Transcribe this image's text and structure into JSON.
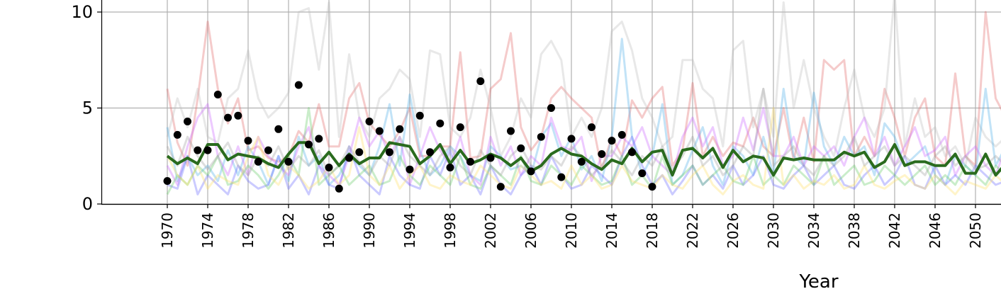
{
  "chart_data": {
    "type": "line",
    "title": "",
    "xlabel": "Year",
    "ylabel": "",
    "xlim": [
      1963.5,
      2053
    ],
    "ylim": [
      0,
      10.5
    ],
    "grid": true,
    "x_ticks": [
      1970,
      1974,
      1978,
      1982,
      1986,
      1990,
      1994,
      1998,
      2002,
      2006,
      2010,
      2014,
      2018,
      2022,
      2026,
      2030,
      2034,
      2038,
      2042,
      2046,
      2050
    ],
    "x_tick_labels": [
      "1970",
      "1974",
      "1978",
      "1982",
      "1986",
      "1990",
      "1994",
      "1998",
      "2002",
      "2006",
      "2010",
      "2014",
      "2018",
      "2022",
      "2026",
      "2030",
      "2034",
      "2038",
      "2042",
      "2046",
      "2050"
    ],
    "y_ticks": [
      0,
      5,
      10
    ],
    "y_tick_labels": [
      "0",
      "5",
      "10"
    ],
    "colors": {
      "mean_line": "#2a6b1e",
      "observed_points": "#000000",
      "ensemble": [
        "#e36a6a",
        "#bdbdbd",
        "#4fb0e8",
        "#cc66ff",
        "#6b6bff",
        "#66cc66",
        "#ffe066",
        "#a0a0a0"
      ]
    },
    "series": [
      {
        "kind": "mean",
        "x": [
          1970,
          1971,
          1972,
          1973,
          1974,
          1975,
          1976,
          1977,
          1978,
          1979,
          1980,
          1981,
          1982,
          1983,
          1984,
          1985,
          1986,
          1987,
          1988,
          1989,
          1990,
          1991,
          1992,
          1993,
          1994,
          1995,
          1996,
          1997,
          1998,
          1999,
          2000,
          2001,
          2002,
          2003,
          2004,
          2005,
          2006,
          2007,
          2008,
          2009,
          2010,
          2011,
          2012,
          2013,
          2014,
          2015,
          2016,
          2017,
          2018,
          2019,
          2020,
          2021,
          2022,
          2023,
          2024,
          2025,
          2026,
          2027,
          2028,
          2029,
          2030,
          2031,
          2032,
          2033,
          2034,
          2035,
          2036,
          2037,
          2038,
          2039,
          2040,
          2041,
          2042,
          2043,
          2044,
          2045,
          2046,
          2047,
          2048,
          2049,
          2050,
          2051,
          2052,
          2053
        ],
        "values": [
          2.5,
          2.1,
          2.4,
          2.1,
          3.1,
          3.1,
          2.3,
          2.6,
          2.5,
          2.4,
          2.1,
          1.9,
          2.6,
          3.2,
          3.2,
          2.1,
          2.7,
          2.0,
          2.6,
          2.1,
          2.4,
          2.4,
          3.2,
          3.1,
          3.0,
          2.1,
          2.5,
          3.1,
          2.1,
          2.8,
          2.1,
          2.3,
          2.6,
          2.4,
          2.0,
          2.4,
          1.7,
          2.0,
          2.6,
          2.9,
          2.6,
          2.5,
          2.1,
          1.8,
          2.3,
          2.1,
          2.9,
          2.2,
          2.7,
          2.8,
          1.5,
          2.8,
          2.9,
          2.4,
          2.9,
          1.9,
          2.8,
          2.2,
          2.5,
          2.4,
          1.5,
          2.4,
          2.3,
          2.4,
          2.3,
          2.3,
          2.3,
          2.7,
          2.5,
          2.7,
          1.9,
          2.2,
          3.1,
          2.0,
          2.2,
          2.2,
          2.0,
          2.0,
          2.6,
          1.6,
          1.6,
          2.6,
          1.5,
          2.1
        ]
      },
      {
        "kind": "observed",
        "x": [
          1970,
          1971,
          1972,
          1973,
          1974,
          1975,
          1976,
          1977,
          1978,
          1979,
          1980,
          1981,
          1982,
          1983,
          1984,
          1985,
          1986,
          1987,
          1988,
          1989,
          1990,
          1991,
          1992,
          1993,
          1994,
          1995,
          1996,
          1997,
          1998,
          1999,
          2000,
          2001,
          2002,
          2003,
          2004,
          2005,
          2006,
          2007,
          2008,
          2009,
          2010,
          2011,
          2012,
          2013,
          2014,
          2015,
          2016,
          2017,
          2018
        ],
        "values": [
          1.2,
          3.6,
          4.3,
          2.8,
          2.8,
          5.7,
          4.5,
          4.6,
          3.3,
          2.2,
          2.8,
          3.9,
          2.2,
          6.2,
          3.1,
          3.4,
          1.9,
          0.8,
          2.4,
          2.7,
          4.3,
          3.8,
          2.7,
          3.9,
          1.8,
          4.6,
          2.7,
          4.2,
          1.9,
          4.0,
          2.2,
          6.4,
          2.4,
          0.9,
          3.8,
          2.9,
          1.7,
          3.5,
          5.0,
          1.4,
          3.4,
          2.2,
          4.0,
          2.6,
          3.3,
          3.6,
          2.7,
          1.6,
          0.9
        ]
      },
      {
        "kind": "ensemble",
        "x_start": 1970,
        "values": [
          6.0,
          3.2,
          2.0,
          5.5,
          9.5,
          6.0,
          4.2,
          5.5,
          2.8,
          3.0,
          2.4,
          2.2,
          2.5,
          3.8,
          3.2,
          5.2,
          3.0,
          3.0,
          5.5,
          6.3,
          4.2,
          3.6,
          3.0,
          3.8,
          5.0,
          2.5,
          2.5,
          3.0,
          3.0,
          7.9,
          2.4,
          2.5,
          6.0,
          6.5,
          8.9,
          4.0,
          2.8,
          3.5,
          5.5,
          6.1,
          5.5,
          5.0,
          4.5,
          1.8,
          3.5,
          2.5,
          5.4,
          4.5,
          5.5,
          6.1,
          2.0,
          2.8,
          6.3,
          2.5,
          3.5,
          2.5,
          3.2,
          3.0,
          4.5,
          3.0,
          2.5,
          5.0,
          2.3,
          4.5,
          2.2,
          7.5,
          7.0,
          7.5,
          2.5,
          3.5,
          2.5,
          6.0,
          4.5,
          2.5,
          4.5,
          5.5,
          2.5,
          2.0,
          6.8,
          2.5,
          2.0,
          10.0,
          5.5,
          4.5
        ]
      },
      {
        "kind": "ensemble",
        "x_start": 1970,
        "values": [
          3.5,
          5.5,
          4.0,
          6.0,
          3.5,
          3.2,
          5.5,
          6.0,
          8.0,
          5.5,
          4.5,
          5.0,
          5.8,
          10.0,
          10.2,
          7.0,
          10.5,
          3.5,
          7.8,
          4.5,
          3.5,
          5.5,
          6.0,
          7.0,
          6.5,
          3.5,
          8.0,
          7.8,
          4.0,
          3.5,
          4.5,
          7.0,
          5.0,
          2.5,
          3.5,
          5.5,
          4.5,
          7.8,
          8.5,
          7.5,
          3.5,
          4.5,
          3.5,
          5.0,
          9.0,
          9.5,
          8.0,
          5.5,
          4.5,
          3.0,
          3.5,
          7.5,
          7.5,
          6.0,
          5.5,
          3.0,
          8.0,
          8.5,
          4.0,
          6.0,
          3.5,
          10.5,
          5.0,
          7.5,
          5.0,
          3.5,
          2.5,
          5.0,
          7.0,
          4.5,
          3.5,
          5.0,
          11.0,
          3.0,
          5.5,
          3.5,
          4.0,
          2.5,
          3.0,
          2.0,
          4.5,
          3.5,
          3.0,
          3.5
        ]
      },
      {
        "kind": "ensemble",
        "x_start": 1970,
        "values": [
          4.0,
          1.2,
          2.5,
          1.5,
          2.0,
          1.2,
          2.8,
          1.5,
          3.0,
          2.2,
          1.0,
          2.5,
          1.2,
          3.5,
          2.0,
          2.5,
          1.0,
          1.5,
          2.5,
          2.0,
          1.5,
          3.0,
          5.2,
          2.0,
          5.7,
          2.8,
          1.5,
          2.0,
          3.0,
          2.5,
          1.5,
          1.2,
          3.0,
          2.5,
          1.8,
          2.0,
          1.5,
          3.5,
          4.2,
          2.5,
          3.5,
          1.8,
          2.5,
          1.2,
          3.5,
          8.6,
          3.5,
          1.5,
          2.5,
          5.2,
          1.0,
          1.5,
          2.8,
          4.0,
          2.0,
          1.0,
          3.0,
          2.5,
          1.5,
          3.5,
          1.5,
          6.0,
          2.5,
          2.0,
          5.8,
          3.0,
          2.0,
          3.5,
          2.5,
          3.0,
          1.5,
          4.2,
          3.5,
          2.0,
          2.5,
          3.0,
          1.5,
          1.0,
          2.5,
          2.0,
          1.5,
          6.0,
          2.0,
          3.0
        ]
      },
      {
        "kind": "ensemble",
        "x_start": 1970,
        "values": [
          2.0,
          1.0,
          3.0,
          4.5,
          5.2,
          2.5,
          1.5,
          3.0,
          1.5,
          3.5,
          2.5,
          2.0,
          1.5,
          3.0,
          4.0,
          2.0,
          1.5,
          1.0,
          2.5,
          4.5,
          3.0,
          3.8,
          2.5,
          3.5,
          1.0,
          2.5,
          4.0,
          2.8,
          2.0,
          3.5,
          1.5,
          1.0,
          3.5,
          2.0,
          3.0,
          1.5,
          2.5,
          2.0,
          4.5,
          3.0,
          2.8,
          3.5,
          1.2,
          2.5,
          2.5,
          3.5,
          3.0,
          4.0,
          2.5,
          2.0,
          1.5,
          3.5,
          4.5,
          3.0,
          4.0,
          2.0,
          2.5,
          4.5,
          2.8,
          5.0,
          2.5,
          2.5,
          3.5,
          2.0,
          3.0,
          2.5,
          3.0,
          2.0,
          3.5,
          4.5,
          2.5,
          3.5,
          2.0,
          3.0,
          4.0,
          2.5,
          2.8,
          3.5,
          1.5,
          2.5,
          3.0,
          2.0,
          1.5,
          3.0
        ]
      },
      {
        "kind": "ensemble",
        "x_start": 1970,
        "values": [
          1.0,
          0.8,
          2.5,
          0.5,
          1.5,
          1.0,
          0.5,
          2.0,
          1.2,
          0.8,
          1.0,
          2.5,
          0.8,
          1.5,
          0.5,
          2.0,
          1.0,
          0.8,
          3.0,
          1.5,
          1.0,
          0.5,
          2.5,
          1.5,
          1.0,
          0.8,
          2.5,
          1.5,
          2.8,
          1.0,
          1.5,
          0.5,
          2.0,
          1.0,
          0.5,
          1.5,
          2.0,
          1.0,
          2.5,
          1.5,
          0.8,
          1.0,
          2.0,
          1.5,
          1.0,
          2.5,
          3.5,
          2.0,
          1.0,
          1.5,
          0.5,
          1.2,
          2.0,
          1.0,
          1.5,
          0.8,
          2.0,
          1.0,
          1.5,
          2.5,
          1.0,
          0.8,
          1.5,
          2.0,
          1.0,
          1.5,
          2.0,
          1.0,
          0.8,
          1.5,
          2.0,
          1.0,
          1.5,
          2.5,
          1.0,
          0.8,
          2.0,
          1.0,
          1.5,
          1.0,
          2.0,
          1.5,
          1.0,
          1.2
        ]
      },
      {
        "kind": "ensemble",
        "x_start": 1970,
        "values": [
          0.5,
          1.5,
          1.0,
          2.0,
          1.5,
          2.5,
          1.0,
          1.2,
          2.0,
          1.5,
          0.8,
          1.5,
          2.5,
          1.5,
          5.0,
          1.0,
          1.5,
          2.0,
          1.0,
          1.5,
          2.0,
          1.0,
          1.2,
          2.5,
          1.5,
          1.0,
          2.0,
          1.5,
          1.0,
          2.5,
          1.0,
          0.8,
          2.0,
          1.5,
          1.0,
          2.5,
          1.2,
          1.0,
          2.0,
          1.5,
          1.0,
          2.0,
          1.5,
          1.0,
          1.2,
          2.5,
          1.0,
          1.5,
          0.8,
          2.5,
          1.0,
          1.5,
          2.0,
          1.0,
          1.5,
          2.0,
          1.2,
          1.0,
          2.5,
          1.0,
          1.5,
          1.0,
          2.0,
          1.5,
          1.0,
          2.5,
          1.0,
          1.5,
          2.0,
          1.0,
          1.2,
          2.0,
          1.5,
          1.0,
          1.5,
          2.0,
          1.0,
          1.5,
          1.0,
          2.0,
          1.5,
          1.0,
          2.0,
          1.5
        ]
      },
      {
        "kind": "ensemble",
        "x_start": 1970,
        "values": [
          2.5,
          1.5,
          1.0,
          2.0,
          0.8,
          1.5,
          1.2,
          1.0,
          2.5,
          3.5,
          1.5,
          1.0,
          2.0,
          1.5,
          0.8,
          1.2,
          2.0,
          1.0,
          1.5,
          4.0,
          1.5,
          1.0,
          2.0,
          0.8,
          1.5,
          2.0,
          1.0,
          0.8,
          1.5,
          1.2,
          1.0,
          2.0,
          1.5,
          1.0,
          0.8,
          2.0,
          1.5,
          1.0,
          1.2,
          0.8,
          2.0,
          1.0,
          1.5,
          0.8,
          1.0,
          2.0,
          1.2,
          1.0,
          0.8,
          1.5,
          1.0,
          0.8,
          1.5,
          2.0,
          1.0,
          0.5,
          1.2,
          1.5,
          1.0,
          0.8,
          5.0,
          1.0,
          1.5,
          0.8,
          1.2,
          1.0,
          1.5,
          0.8,
          1.0,
          2.0,
          1.0,
          0.8,
          1.2,
          1.5,
          1.0,
          0.8,
          1.5,
          1.0,
          0.5,
          1.2,
          1.0,
          0.8,
          1.5,
          1.0
        ]
      },
      {
        "kind": "ensemble",
        "x_start": 1970,
        "values": [
          3.0,
          2.0,
          3.5,
          2.5,
          1.8,
          2.5,
          3.2,
          2.0,
          1.5,
          2.5,
          2.0,
          3.0,
          1.8,
          2.5,
          2.0,
          2.8,
          1.5,
          2.0,
          3.0,
          2.2,
          1.5,
          2.5,
          2.0,
          3.5,
          2.5,
          2.0,
          1.5,
          2.5,
          3.0,
          2.0,
          1.5,
          2.8,
          2.0,
          1.5,
          2.5,
          3.0,
          2.0,
          1.8,
          2.5,
          2.0,
          3.0,
          2.5,
          1.5,
          2.0,
          2.8,
          2.2,
          1.5,
          2.5,
          2.0,
          3.0,
          1.8,
          2.5,
          3.5,
          2.0,
          2.5,
          1.5,
          2.0,
          3.0,
          2.5,
          6.0,
          2.0,
          2.5,
          3.0,
          2.0,
          1.5,
          2.5,
          2.0,
          2.5,
          3.5,
          2.0,
          2.5,
          3.0,
          2.0,
          2.5,
          2.0,
          1.5,
          2.5,
          3.0,
          2.0,
          2.5,
          1.8,
          2.0,
          2.5,
          2.0
        ]
      }
    ]
  }
}
